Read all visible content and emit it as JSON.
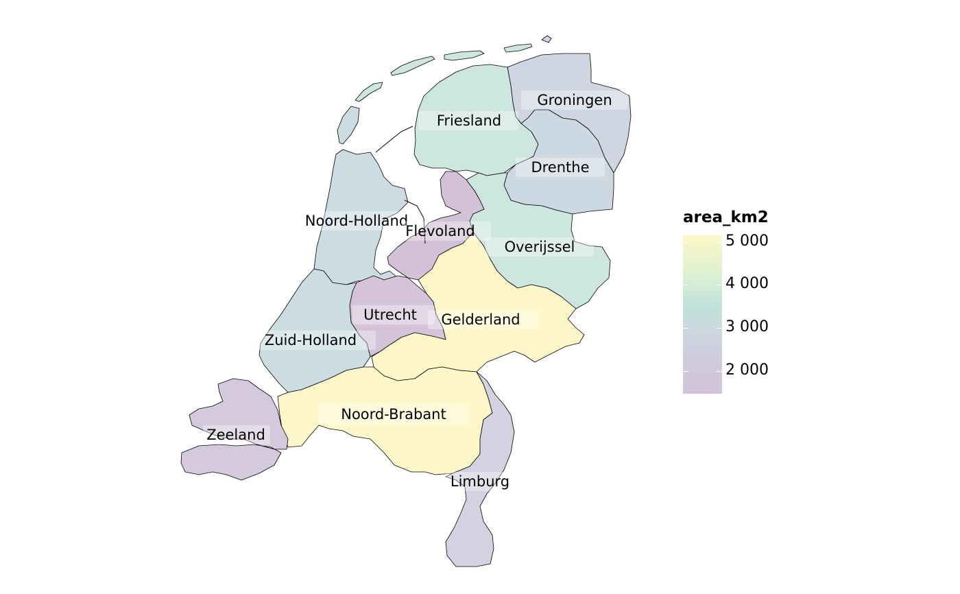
{
  "legend": {
    "title": "area_km2",
    "ticks": [
      "5 000",
      "4 000",
      "3 000",
      "2 000"
    ],
    "colors": {
      "high": "#FDF7C6",
      "mid_high": "#DCF1D2",
      "mid": "#C7DFE0",
      "mid_low": "#CDD3E0",
      "low": "#D3C3DA"
    }
  },
  "provinces": [
    {
      "name": "Groningen",
      "fill": "#D0D5E2"
    },
    {
      "name": "Friesland",
      "fill": "#CDE6DF"
    },
    {
      "name": "Drenthe",
      "fill": "#CDD9E2"
    },
    {
      "name": "Noord-Holland",
      "fill": "#CCDCE3"
    },
    {
      "name": "Flevoland",
      "fill": "#D3C1D8"
    },
    {
      "name": "Overijssel",
      "fill": "#CDE6E0"
    },
    {
      "name": "Utrecht",
      "fill": "#D5C3D9"
    },
    {
      "name": "Gelderland",
      "fill": "#FDF7CA"
    },
    {
      "name": "Zuid-Holland",
      "fill": "#CCDDE2"
    },
    {
      "name": "Noord-Brabant",
      "fill": "#FDF7CA"
    },
    {
      "name": "Zeeland",
      "fill": "#D5CADD"
    },
    {
      "name": "Limburg",
      "fill": "#D2D2E0"
    }
  ]
}
